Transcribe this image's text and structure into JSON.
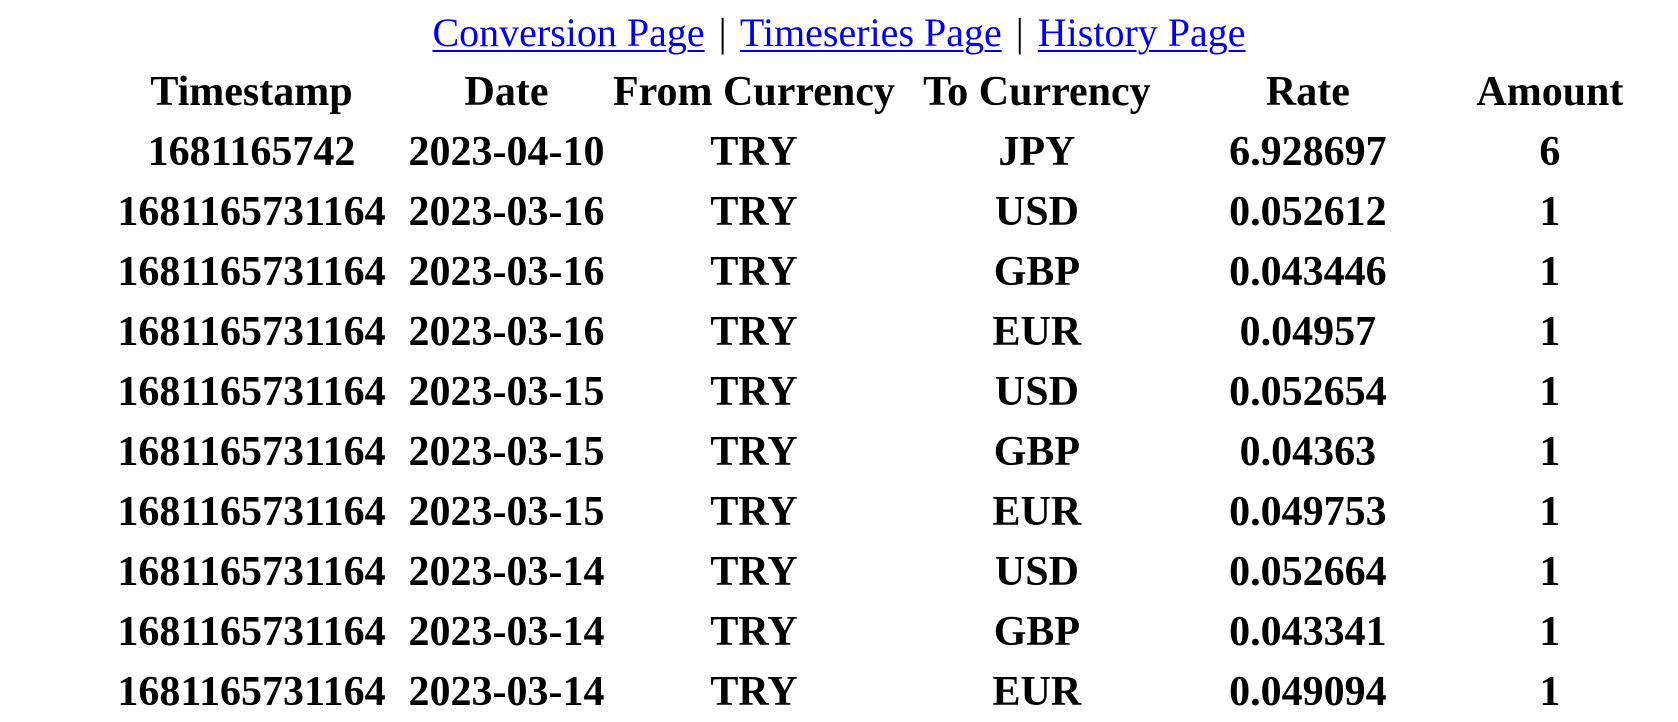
{
  "nav": {
    "links": [
      {
        "label": "Conversion Page"
      },
      {
        "label": "Timeseries Page"
      },
      {
        "label": "History Page"
      }
    ],
    "separator": "|"
  },
  "table": {
    "headers": [
      "Timestamp",
      "Date",
      "From Currency",
      "To Currency",
      "Rate",
      "Amount"
    ],
    "rows": [
      [
        "1681165742",
        "2023-04-10",
        "TRY",
        "JPY",
        "6.928697",
        "6"
      ],
      [
        "1681165731164",
        "2023-03-16",
        "TRY",
        "USD",
        "0.052612",
        "1"
      ],
      [
        "1681165731164",
        "2023-03-16",
        "TRY",
        "GBP",
        "0.043446",
        "1"
      ],
      [
        "1681165731164",
        "2023-03-16",
        "TRY",
        "EUR",
        "0.04957",
        "1"
      ],
      [
        "1681165731164",
        "2023-03-15",
        "TRY",
        "USD",
        "0.052654",
        "1"
      ],
      [
        "1681165731164",
        "2023-03-15",
        "TRY",
        "GBP",
        "0.04363",
        "1"
      ],
      [
        "1681165731164",
        "2023-03-15",
        "TRY",
        "EUR",
        "0.049753",
        "1"
      ],
      [
        "1681165731164",
        "2023-03-14",
        "TRY",
        "USD",
        "0.052664",
        "1"
      ],
      [
        "1681165731164",
        "2023-03-14",
        "TRY",
        "GBP",
        "0.043341",
        "1"
      ],
      [
        "1681165731164",
        "2023-03-14",
        "TRY",
        "EUR",
        "0.049094",
        "1"
      ]
    ]
  },
  "colors": {
    "link": "#0000ee",
    "text": "#000000",
    "background": "#ffffff"
  }
}
